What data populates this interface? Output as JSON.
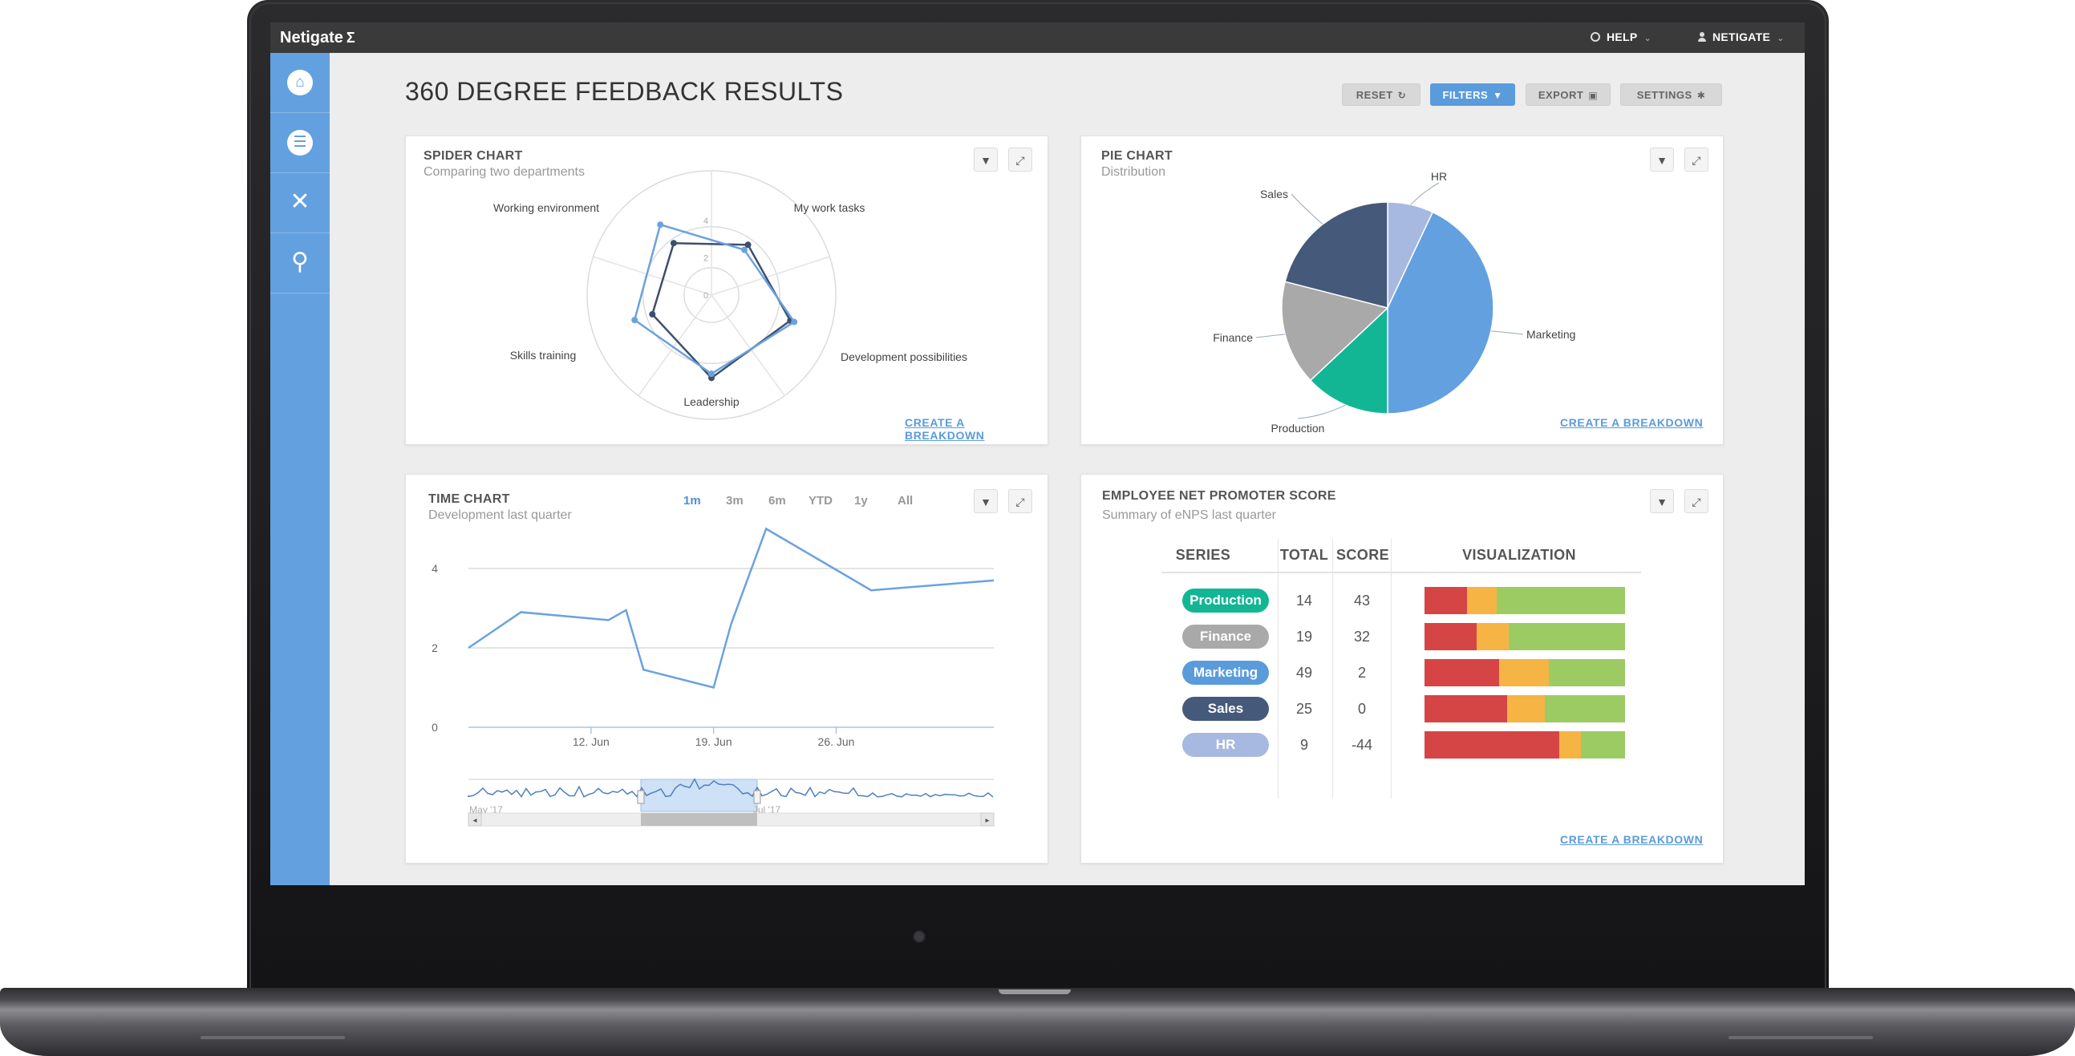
{
  "topbar": {
    "logo": "Netigate",
    "logo_mark": "Σ",
    "help": "HELP",
    "user": "NETIGATE"
  },
  "sidebar": {
    "items": [
      {
        "name": "home",
        "icon": "home-icon",
        "glyph": "⌂"
      },
      {
        "name": "surveys",
        "icon": "list-icon",
        "glyph": "☰"
      },
      {
        "name": "tools",
        "icon": "tools-icon",
        "glyph": "✕"
      },
      {
        "name": "search",
        "icon": "search-icon",
        "glyph": "⚲"
      }
    ]
  },
  "page": {
    "title": "360 DEGREE FEEDBACK RESULTS"
  },
  "toolbar": {
    "reset": "RESET",
    "reset_icon": "↻",
    "filters": "FILTERS",
    "filters_icon": "▼",
    "export": "EXPORT",
    "export_icon": "▣",
    "settings": "SETTINGS",
    "settings_icon": "✱"
  },
  "cards": {
    "spider": {
      "title": "SPIDER CHART",
      "subtitle": "Comparing two departments",
      "link": "CREATE A BREAKDOWN"
    },
    "pie": {
      "title": "PIE CHART",
      "subtitle": "Distribution",
      "link": "CREATE A BREAKDOWN"
    },
    "time": {
      "title": "TIME CHART",
      "subtitle": "Development last quarter",
      "ranges": [
        "1m",
        "3m",
        "6m",
        "YTD",
        "1y",
        "All"
      ],
      "active_range": "1m"
    },
    "enps": {
      "title": "EMPLOYEE NET PROMOTER SCORE",
      "subtitle": "Summary of eNPS last quarter",
      "link": "CREATE A BREAKDOWN",
      "headers": [
        "SERIES",
        "TOTAL",
        "SCORE",
        "VISUALIZATION"
      ]
    }
  },
  "icons": {
    "filter": "▼",
    "expand": "⤢"
  },
  "colors": {
    "accent": "#5a9bdc",
    "sidebar": "#63a0e0",
    "red": "#d64545",
    "orange": "#f6b444",
    "green": "#9ccb64"
  },
  "chart_data": [
    {
      "type": "radar",
      "axes": [
        "My work tasks",
        "Development possibilities",
        "Leadership",
        "Skills training",
        "Working environment"
      ],
      "ticks": [
        "0",
        "2",
        "4"
      ],
      "rmax": 6,
      "series": [
        {
          "color": "#3d4f6e",
          "values": [
            3.0,
            4.0,
            4.0,
            3.0,
            3.1
          ]
        },
        {
          "color": "#6aa2df",
          "values": [
            2.7,
            4.2,
            3.8,
            3.9,
            4.2
          ]
        }
      ]
    },
    {
      "type": "pie",
      "labels": [
        "HR",
        "Marketing",
        "Production",
        "Finance",
        "Sales"
      ],
      "values": [
        7,
        43,
        13,
        16,
        21
      ],
      "colors": [
        "#a7b9e0",
        "#63a0e0",
        "#13b694",
        "#a9a9a9",
        "#45597a"
      ]
    },
    {
      "type": "line",
      "x_ticks": [
        "12. Jun",
        "19. Jun",
        "26. Jun"
      ],
      "y_ticks": [
        "0",
        "2",
        "4"
      ],
      "ylim": [
        0,
        5
      ],
      "x_dates": [
        "5 Jun",
        "8 Jun",
        "13 Jun",
        "14 Jun",
        "15 Jun",
        "19 Jun",
        "20 Jun",
        "22 Jun",
        "28 Jun",
        "5 Jul"
      ],
      "values": [
        2.0,
        2.9,
        2.7,
        2.95,
        1.45,
        1.0,
        2.6,
        5.0,
        3.45,
        3.7
      ],
      "navigator_labels": [
        "May '17",
        "Jul '17"
      ]
    },
    {
      "type": "table",
      "rows": [
        {
          "series": "Production",
          "total": "14",
          "score": "43",
          "color": "#13b694",
          "red": 0.21,
          "orange": 0.15,
          "green": 0.64
        },
        {
          "series": "Finance",
          "total": "19",
          "score": "32",
          "color": "#a9a9a9",
          "red": 0.26,
          "orange": 0.16,
          "green": 0.58
        },
        {
          "series": "Marketing",
          "total": "49",
          "score": "2",
          "color": "#5a9bdc",
          "red": 0.37,
          "orange": 0.25,
          "green": 0.38
        },
        {
          "series": "Sales",
          "total": "25",
          "score": "0",
          "color": "#45597a",
          "red": 0.41,
          "orange": 0.19,
          "green": 0.4
        },
        {
          "series": "HR",
          "total": "9",
          "score": "-44",
          "color": "#a7b9e0",
          "red": 0.67,
          "orange": 0.11,
          "green": 0.22
        }
      ]
    }
  ]
}
